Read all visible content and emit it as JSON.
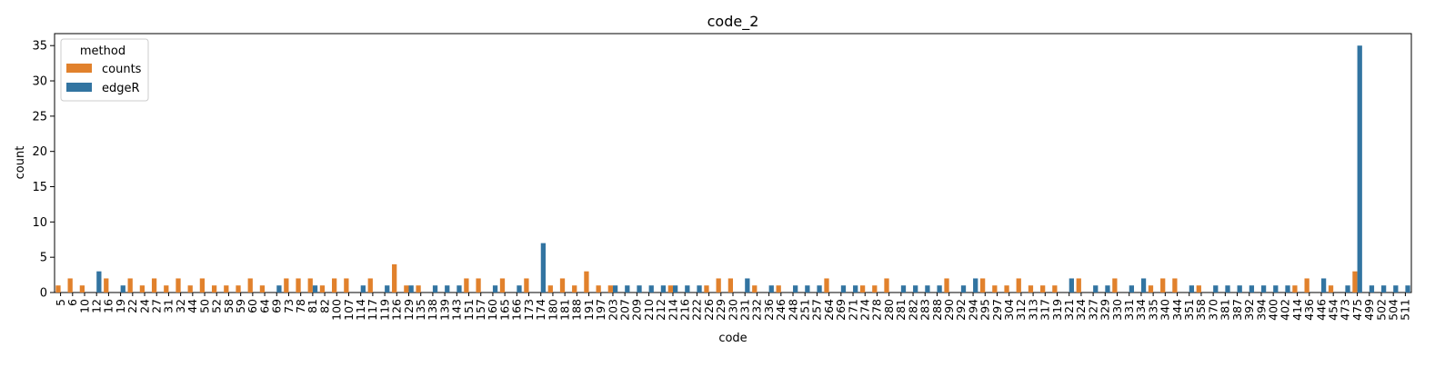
{
  "chart_data": {
    "type": "bar",
    "title": "code_2",
    "xlabel": "code",
    "ylabel": "count",
    "ylim": [
      0,
      36.7
    ],
    "yticks": [
      0,
      5,
      10,
      15,
      20,
      25,
      30,
      35
    ],
    "legend": {
      "title": "method",
      "placement": "top-left"
    },
    "categories": [
      "5",
      "6",
      "10",
      "12",
      "16",
      "19",
      "22",
      "24",
      "27",
      "31",
      "32",
      "44",
      "50",
      "52",
      "58",
      "59",
      "60",
      "64",
      "69",
      "73",
      "78",
      "81",
      "82",
      "100",
      "107",
      "114",
      "117",
      "119",
      "126",
      "129",
      "135",
      "138",
      "139",
      "143",
      "151",
      "157",
      "160",
      "165",
      "166",
      "173",
      "174",
      "180",
      "181",
      "188",
      "191",
      "197",
      "203",
      "207",
      "209",
      "210",
      "212",
      "214",
      "216",
      "222",
      "226",
      "229",
      "230",
      "231",
      "232",
      "236",
      "246",
      "248",
      "251",
      "257",
      "264",
      "269",
      "271",
      "274",
      "278",
      "280",
      "281",
      "282",
      "283",
      "288",
      "290",
      "292",
      "294",
      "295",
      "297",
      "304",
      "312",
      "313",
      "317",
      "319",
      "321",
      "324",
      "327",
      "329",
      "330",
      "331",
      "334",
      "335",
      "340",
      "344",
      "351",
      "358",
      "370",
      "381",
      "387",
      "392",
      "394",
      "400",
      "402",
      "414",
      "436",
      "446",
      "454",
      "473",
      "475",
      "499",
      "502",
      "504",
      "511"
    ],
    "series": [
      {
        "name": "counts",
        "color": "#e1812c",
        "values": [
          1,
          2,
          1,
          0,
          2,
          0,
          2,
          1,
          2,
          1,
          2,
          1,
          2,
          1,
          1,
          1,
          2,
          1,
          0,
          2,
          2,
          2,
          1,
          2,
          2,
          0,
          2,
          0,
          4,
          1,
          1,
          0,
          0,
          0,
          2,
          2,
          0,
          2,
          0,
          2,
          0,
          1,
          2,
          1,
          3,
          1,
          1,
          0,
          0,
          0,
          0,
          1,
          0,
          0,
          1,
          2,
          2,
          0,
          1,
          0,
          1,
          0,
          0,
          0,
          2,
          0,
          0,
          1,
          1,
          2,
          0,
          0,
          0,
          0,
          2,
          0,
          0,
          2,
          1,
          1,
          2,
          1,
          1,
          1,
          0,
          2,
          0,
          0,
          2,
          0,
          0,
          1,
          2,
          2,
          0,
          1,
          0,
          0,
          0,
          0,
          0,
          0,
          0,
          1,
          2,
          0,
          1,
          0,
          3,
          0,
          0,
          0,
          0
        ]
      },
      {
        "name": "edgeR",
        "color": "#3274a1",
        "values": [
          0,
          0,
          0,
          3,
          0,
          1,
          0,
          0,
          0,
          0,
          0,
          0,
          0,
          0,
          0,
          0,
          0,
          0,
          1,
          0,
          0,
          1,
          0,
          0,
          0,
          1,
          0,
          1,
          0,
          1,
          0,
          1,
          1,
          1,
          0,
          0,
          1,
          0,
          1,
          0,
          7,
          0,
          0,
          0,
          0,
          0,
          1,
          1,
          1,
          1,
          1,
          1,
          1,
          1,
          0,
          0,
          0,
          2,
          0,
          1,
          0,
          1,
          1,
          1,
          0,
          1,
          1,
          0,
          0,
          0,
          1,
          1,
          1,
          1,
          0,
          1,
          2,
          0,
          0,
          0,
          0,
          0,
          0,
          0,
          2,
          0,
          1,
          1,
          0,
          1,
          2,
          0,
          0,
          0,
          1,
          0,
          1,
          1,
          1,
          1,
          1,
          1,
          1,
          0,
          0,
          2,
          0,
          1,
          35,
          1,
          1,
          1,
          1
        ]
      }
    ]
  }
}
